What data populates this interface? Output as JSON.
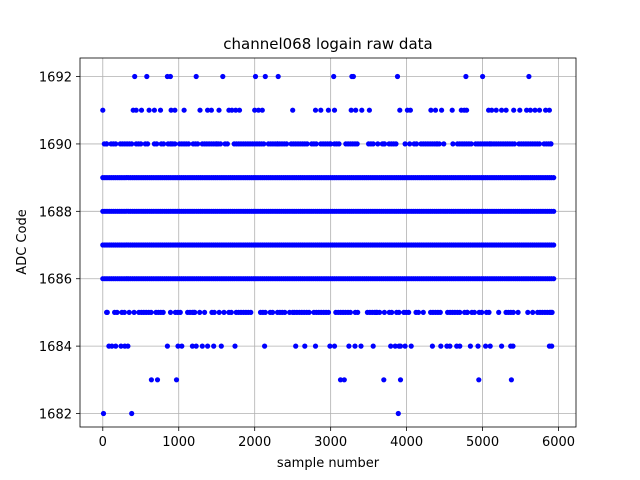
{
  "chart_data": {
    "type": "scatter",
    "title": "channel068 logain raw data",
    "xlabel": "sample number",
    "ylabel": "ADC Code",
    "xlim": [
      -300,
      6230
    ],
    "ylim": [
      1681.6,
      1692.55
    ],
    "xticks": [
      0,
      1000,
      2000,
      3000,
      4000,
      5000,
      6000
    ],
    "yticks": [
      1682,
      1684,
      1686,
      1688,
      1690,
      1692
    ],
    "xtick_labels": [
      "0",
      "1000",
      "2000",
      "3000",
      "4000",
      "5000",
      "6000"
    ],
    "ytick_labels": [
      "1682",
      "1684",
      "1686",
      "1688",
      "1690",
      "1692"
    ],
    "grid": true,
    "marker_color": "#0000ff",
    "n_samples": 6000,
    "dense_levels": [
      1686,
      1687,
      1688,
      1689
    ],
    "series": [
      {
        "points": [
          [
            0,
            1691
          ],
          [
            10,
            1682
          ],
          [
            380,
            1682
          ],
          [
            3890,
            1682
          ],
          [
            50,
            1690
          ],
          [
            900,
            1690
          ],
          [
            1500,
            1690
          ],
          [
            2300,
            1690
          ],
          [
            3000,
            1690
          ],
          [
            3700,
            1690
          ],
          [
            4400,
            1690
          ],
          [
            5100,
            1690
          ],
          [
            5900,
            1690
          ],
          [
            50,
            1685
          ],
          [
            1200,
            1685
          ],
          [
            2500,
            1685
          ],
          [
            3600,
            1685
          ],
          [
            4800,
            1685
          ],
          [
            5900,
            1685
          ],
          [
            80,
            1684
          ],
          [
            120,
            1684
          ],
          [
            170,
            1684
          ],
          [
            240,
            1684
          ],
          [
            290,
            1684
          ],
          [
            330,
            1684
          ],
          [
            850,
            1684
          ],
          [
            990,
            1684
          ],
          [
            1040,
            1684
          ],
          [
            1180,
            1684
          ],
          [
            1230,
            1684
          ],
          [
            1310,
            1684
          ],
          [
            1380,
            1684
          ],
          [
            1460,
            1684
          ],
          [
            1560,
            1684
          ],
          [
            1740,
            1684
          ],
          [
            2130,
            1684
          ],
          [
            2540,
            1684
          ],
          [
            2660,
            1684
          ],
          [
            2800,
            1684
          ],
          [
            2990,
            1684
          ],
          [
            3050,
            1684
          ],
          [
            3240,
            1684
          ],
          [
            3320,
            1684
          ],
          [
            3400,
            1684
          ],
          [
            3560,
            1684
          ],
          [
            3790,
            1684
          ],
          [
            3850,
            1684
          ],
          [
            3900,
            1684
          ],
          [
            3920,
            1684
          ],
          [
            3980,
            1684
          ],
          [
            4060,
            1684
          ],
          [
            4340,
            1684
          ],
          [
            4450,
            1684
          ],
          [
            4530,
            1684
          ],
          [
            4570,
            1684
          ],
          [
            4660,
            1684
          ],
          [
            4700,
            1684
          ],
          [
            4840,
            1684
          ],
          [
            4940,
            1684
          ],
          [
            5040,
            1684
          ],
          [
            5100,
            1684
          ],
          [
            5250,
            1684
          ],
          [
            5370,
            1684
          ],
          [
            5400,
            1684
          ],
          [
            5880,
            1684
          ],
          [
            5910,
            1684
          ],
          [
            640,
            1683
          ],
          [
            720,
            1683
          ],
          [
            970,
            1683
          ],
          [
            3130,
            1683
          ],
          [
            3180,
            1683
          ],
          [
            3700,
            1683
          ],
          [
            3920,
            1683
          ],
          [
            4950,
            1683
          ],
          [
            5380,
            1683
          ],
          [
            400,
            1691
          ],
          [
            440,
            1691
          ],
          [
            510,
            1691
          ],
          [
            610,
            1691
          ],
          [
            680,
            1691
          ],
          [
            760,
            1691
          ],
          [
            900,
            1691
          ],
          [
            950,
            1691
          ],
          [
            1070,
            1691
          ],
          [
            1280,
            1691
          ],
          [
            1380,
            1691
          ],
          [
            1430,
            1691
          ],
          [
            1530,
            1691
          ],
          [
            1660,
            1691
          ],
          [
            1700,
            1691
          ],
          [
            1750,
            1691
          ],
          [
            1800,
            1691
          ],
          [
            2000,
            1691
          ],
          [
            2050,
            1691
          ],
          [
            2100,
            1691
          ],
          [
            2500,
            1691
          ],
          [
            2800,
            1691
          ],
          [
            2870,
            1691
          ],
          [
            2970,
            1691
          ],
          [
            3050,
            1691
          ],
          [
            3270,
            1691
          ],
          [
            3330,
            1691
          ],
          [
            3410,
            1691
          ],
          [
            3510,
            1691
          ],
          [
            3910,
            1691
          ],
          [
            4010,
            1691
          ],
          [
            4050,
            1691
          ],
          [
            4320,
            1691
          ],
          [
            4380,
            1691
          ],
          [
            4460,
            1691
          ],
          [
            4600,
            1691
          ],
          [
            4720,
            1691
          ],
          [
            4760,
            1691
          ],
          [
            4790,
            1691
          ],
          [
            5080,
            1691
          ],
          [
            5120,
            1691
          ],
          [
            5180,
            1691
          ],
          [
            5250,
            1691
          ],
          [
            5310,
            1691
          ],
          [
            5410,
            1691
          ],
          [
            5490,
            1691
          ],
          [
            5580,
            1691
          ],
          [
            5630,
            1691
          ],
          [
            5690,
            1691
          ],
          [
            5750,
            1691
          ],
          [
            5830,
            1691
          ],
          [
            5880,
            1691
          ],
          [
            420,
            1692
          ],
          [
            580,
            1692
          ],
          [
            850,
            1692
          ],
          [
            890,
            1692
          ],
          [
            1230,
            1692
          ],
          [
            1580,
            1692
          ],
          [
            2010,
            1692
          ],
          [
            2140,
            1692
          ],
          [
            2310,
            1692
          ],
          [
            3040,
            1692
          ],
          [
            3280,
            1692
          ],
          [
            3300,
            1692
          ],
          [
            3880,
            1692
          ],
          [
            4780,
            1692
          ],
          [
            5000,
            1692
          ],
          [
            5610,
            1692
          ]
        ]
      }
    ]
  }
}
